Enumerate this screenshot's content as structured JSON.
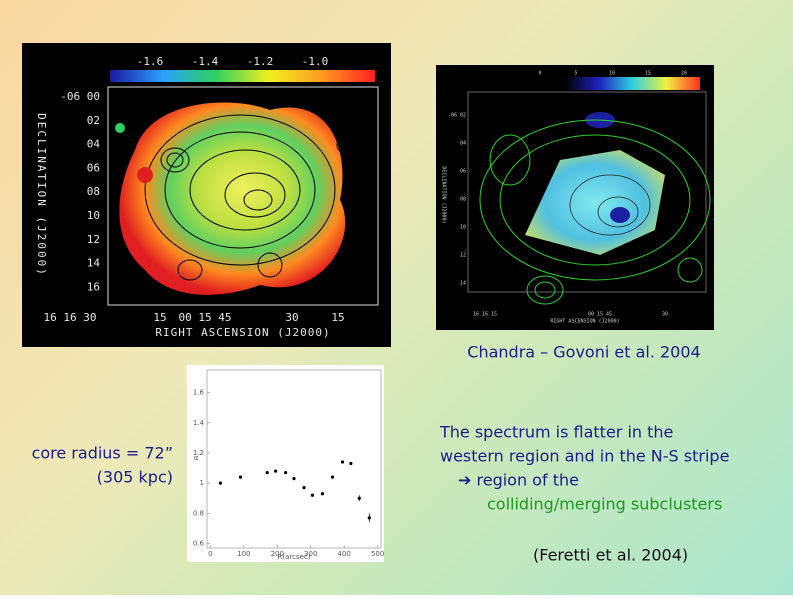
{
  "left_image": {
    "colorbar_labels": [
      "-1.6",
      "-1.4",
      "-1.2",
      "-1.0"
    ],
    "dec_ticks": [
      "-06 00",
      "02",
      "04",
      "06",
      "08",
      "10",
      "12",
      "14",
      "16"
    ],
    "dec_label": "DECLINATION (J2000)",
    "ra_ticks": [
      "16 16 30",
      "15",
      "00 15 45",
      "30",
      "15"
    ],
    "ra_label": "RIGHT ASCENSION (J2000)"
  },
  "right_image": {
    "colorbar_labels": [
      "0",
      "5",
      "10",
      "15",
      "20"
    ],
    "dec_ticks": [
      "-06 02",
      "04",
      "06",
      "08",
      "10",
      "12",
      "14"
    ],
    "dec_label": "DECLINATION (J2000)",
    "ra_ticks": [
      "16 16 15",
      "00 15 45",
      "30"
    ],
    "ra_label": "RIGHT ASCENSION (J2000)"
  },
  "caption": "Chandra – Govoni et al. 2004",
  "core_radius": [
    "core radius = 72”",
    "(305 kpc)"
  ],
  "text": {
    "lines": [
      "The spectrum is flatter in the",
      "western region and in the N-S stripe",
      "➔ region of the"
    ],
    "highlight": "colliding/merging subclusters",
    "reference": "(Feretti et al. 2004)"
  },
  "chart_data": {
    "type": "scatter",
    "x_label": "R(arcsec)",
    "y_label": "α",
    "x": [
      30,
      90,
      170,
      195,
      225,
      250,
      280,
      305,
      335,
      365,
      395,
      420,
      445,
      475
    ],
    "values": [
      1.0,
      1.04,
      1.07,
      1.08,
      1.07,
      1.03,
      0.97,
      0.92,
      0.93,
      1.04,
      1.14,
      1.13,
      0.9,
      0.77
    ],
    "errors": [
      0.01,
      0.01,
      0.01,
      0.01,
      0.01,
      0.01,
      0.01,
      0.01,
      0.01,
      0.01,
      0.01,
      0.01,
      0.02,
      0.03
    ],
    "color": "#000000",
    "xlim": [
      -10,
      510
    ],
    "xticks": [
      0,
      100,
      200,
      300,
      400,
      500
    ],
    "ylim": [
      0.57,
      1.75
    ],
    "yticks": [
      0.6,
      0.8,
      1,
      1.2,
      1.4,
      1.6
    ]
  }
}
